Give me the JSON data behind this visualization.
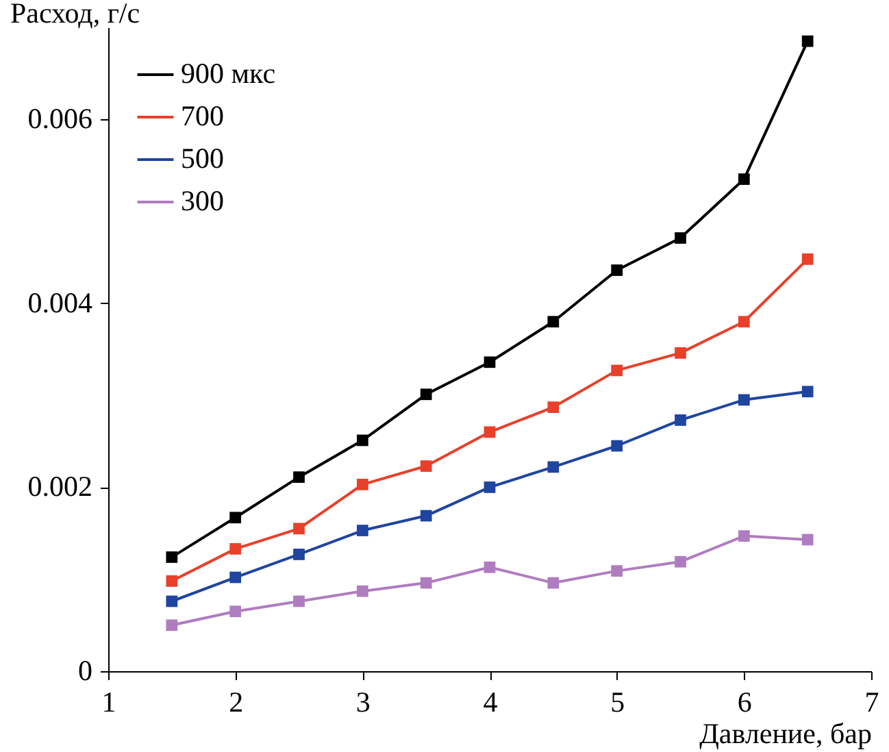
{
  "chart_data": {
    "type": "line",
    "xlabel": "Давление, бар",
    "ylabel": "Расход, г/с",
    "x": [
      1.5,
      2,
      2.5,
      3,
      3.5,
      4,
      4.5,
      5,
      5.5,
      6,
      6.5
    ],
    "series": [
      {
        "name": "900 мкс",
        "color": "#000000",
        "values": [
          0.00124,
          0.00167,
          0.00211,
          0.00251,
          0.00301,
          0.00336,
          0.0038,
          0.00436,
          0.00471,
          0.00535,
          0.00685
        ]
      },
      {
        "name": "700",
        "color": "#e8402a",
        "values": [
          0.00098,
          0.00133,
          0.00155,
          0.00203,
          0.00223,
          0.0026,
          0.00287,
          0.00327,
          0.00346,
          0.0038,
          0.00448
        ]
      },
      {
        "name": "500",
        "color": "#1f45a0",
        "values": [
          0.00076,
          0.00102,
          0.00127,
          0.00153,
          0.00169,
          0.002,
          0.00222,
          0.00245,
          0.00273,
          0.00295,
          0.00304
        ]
      },
      {
        "name": "300",
        "color": "#b07cc0",
        "values": [
          0.0005,
          0.00065,
          0.00076,
          0.00087,
          0.00096,
          0.00113,
          0.00096,
          0.00109,
          0.00119,
          0.00147,
          0.00143
        ]
      }
    ],
    "xlim": [
      1,
      7
    ],
    "xticks": [
      1,
      2,
      3,
      4,
      5,
      6,
      7
    ],
    "ylim": [
      0,
      0.007
    ],
    "yticks": [
      0,
      0.002,
      0.004,
      0.006
    ],
    "grid": false,
    "legend": "top left",
    "marker": "square",
    "line_style": "solid"
  }
}
